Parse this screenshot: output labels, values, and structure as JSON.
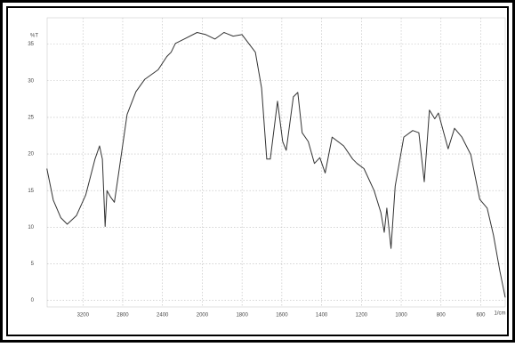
{
  "chart_data": {
    "type": "line",
    "y_label": "%T",
    "x_label": "1/cm",
    "x": [
      3563,
      3498,
      3423,
      3358,
      3265,
      3172,
      3079,
      3033,
      3005,
      2977,
      2958,
      2921,
      2884,
      2847,
      2756,
      2667,
      2578,
      2444,
      2357,
      2313,
      2270,
      2183,
      2052,
      1982,
      1936,
      1891,
      1845,
      1800,
      1733,
      1702,
      1676,
      1658,
      1622,
      1596,
      1578,
      1542,
      1520,
      1498,
      1467,
      1436,
      1409,
      1382,
      1347,
      1289,
      1244,
      1222,
      1187,
      1136,
      1102,
      1085,
      1072,
      1051,
      1030,
      987,
      942,
      911,
      884,
      858,
      831,
      813,
      786,
      764,
      732,
      695,
      650,
      605,
      568,
      536,
      504,
      477
    ],
    "values": [
      18.0,
      13.7,
      11.3,
      10.4,
      11.6,
      14.4,
      19.3,
      21.1,
      19.3,
      10.1,
      15.0,
      14.1,
      13.4,
      16.8,
      25.4,
      28.5,
      30.2,
      31.5,
      33.3,
      33.9,
      35.1,
      35.7,
      36.6,
      36.3,
      35.7,
      36.6,
      36.1,
      36.3,
      33.9,
      29.0,
      19.3,
      19.3,
      27.2,
      21.7,
      20.5,
      27.8,
      28.4,
      22.9,
      21.7,
      18.7,
      19.5,
      17.4,
      22.3,
      21.1,
      19.3,
      18.7,
      18.0,
      15.0,
      12.0,
      9.3,
      12.6,
      7.1,
      15.6,
      22.3,
      23.2,
      22.9,
      16.2,
      26.0,
      24.8,
      25.6,
      22.9,
      20.7,
      23.5,
      22.3,
      19.9,
      13.8,
      12.6,
      8.9,
      4.0,
      0.4
    ],
    "color": "#333333",
    "xlim": [
      3560,
      477
    ],
    "xticks": [
      3200,
      2800,
      2400,
      2000,
      1800,
      1600,
      1400,
      1200,
      1000,
      800,
      600
    ],
    "ylim": [
      -0.9,
      38.6
    ],
    "yticks": [
      0,
      5,
      10,
      15,
      20,
      25,
      30,
      35
    ],
    "grid": true
  }
}
